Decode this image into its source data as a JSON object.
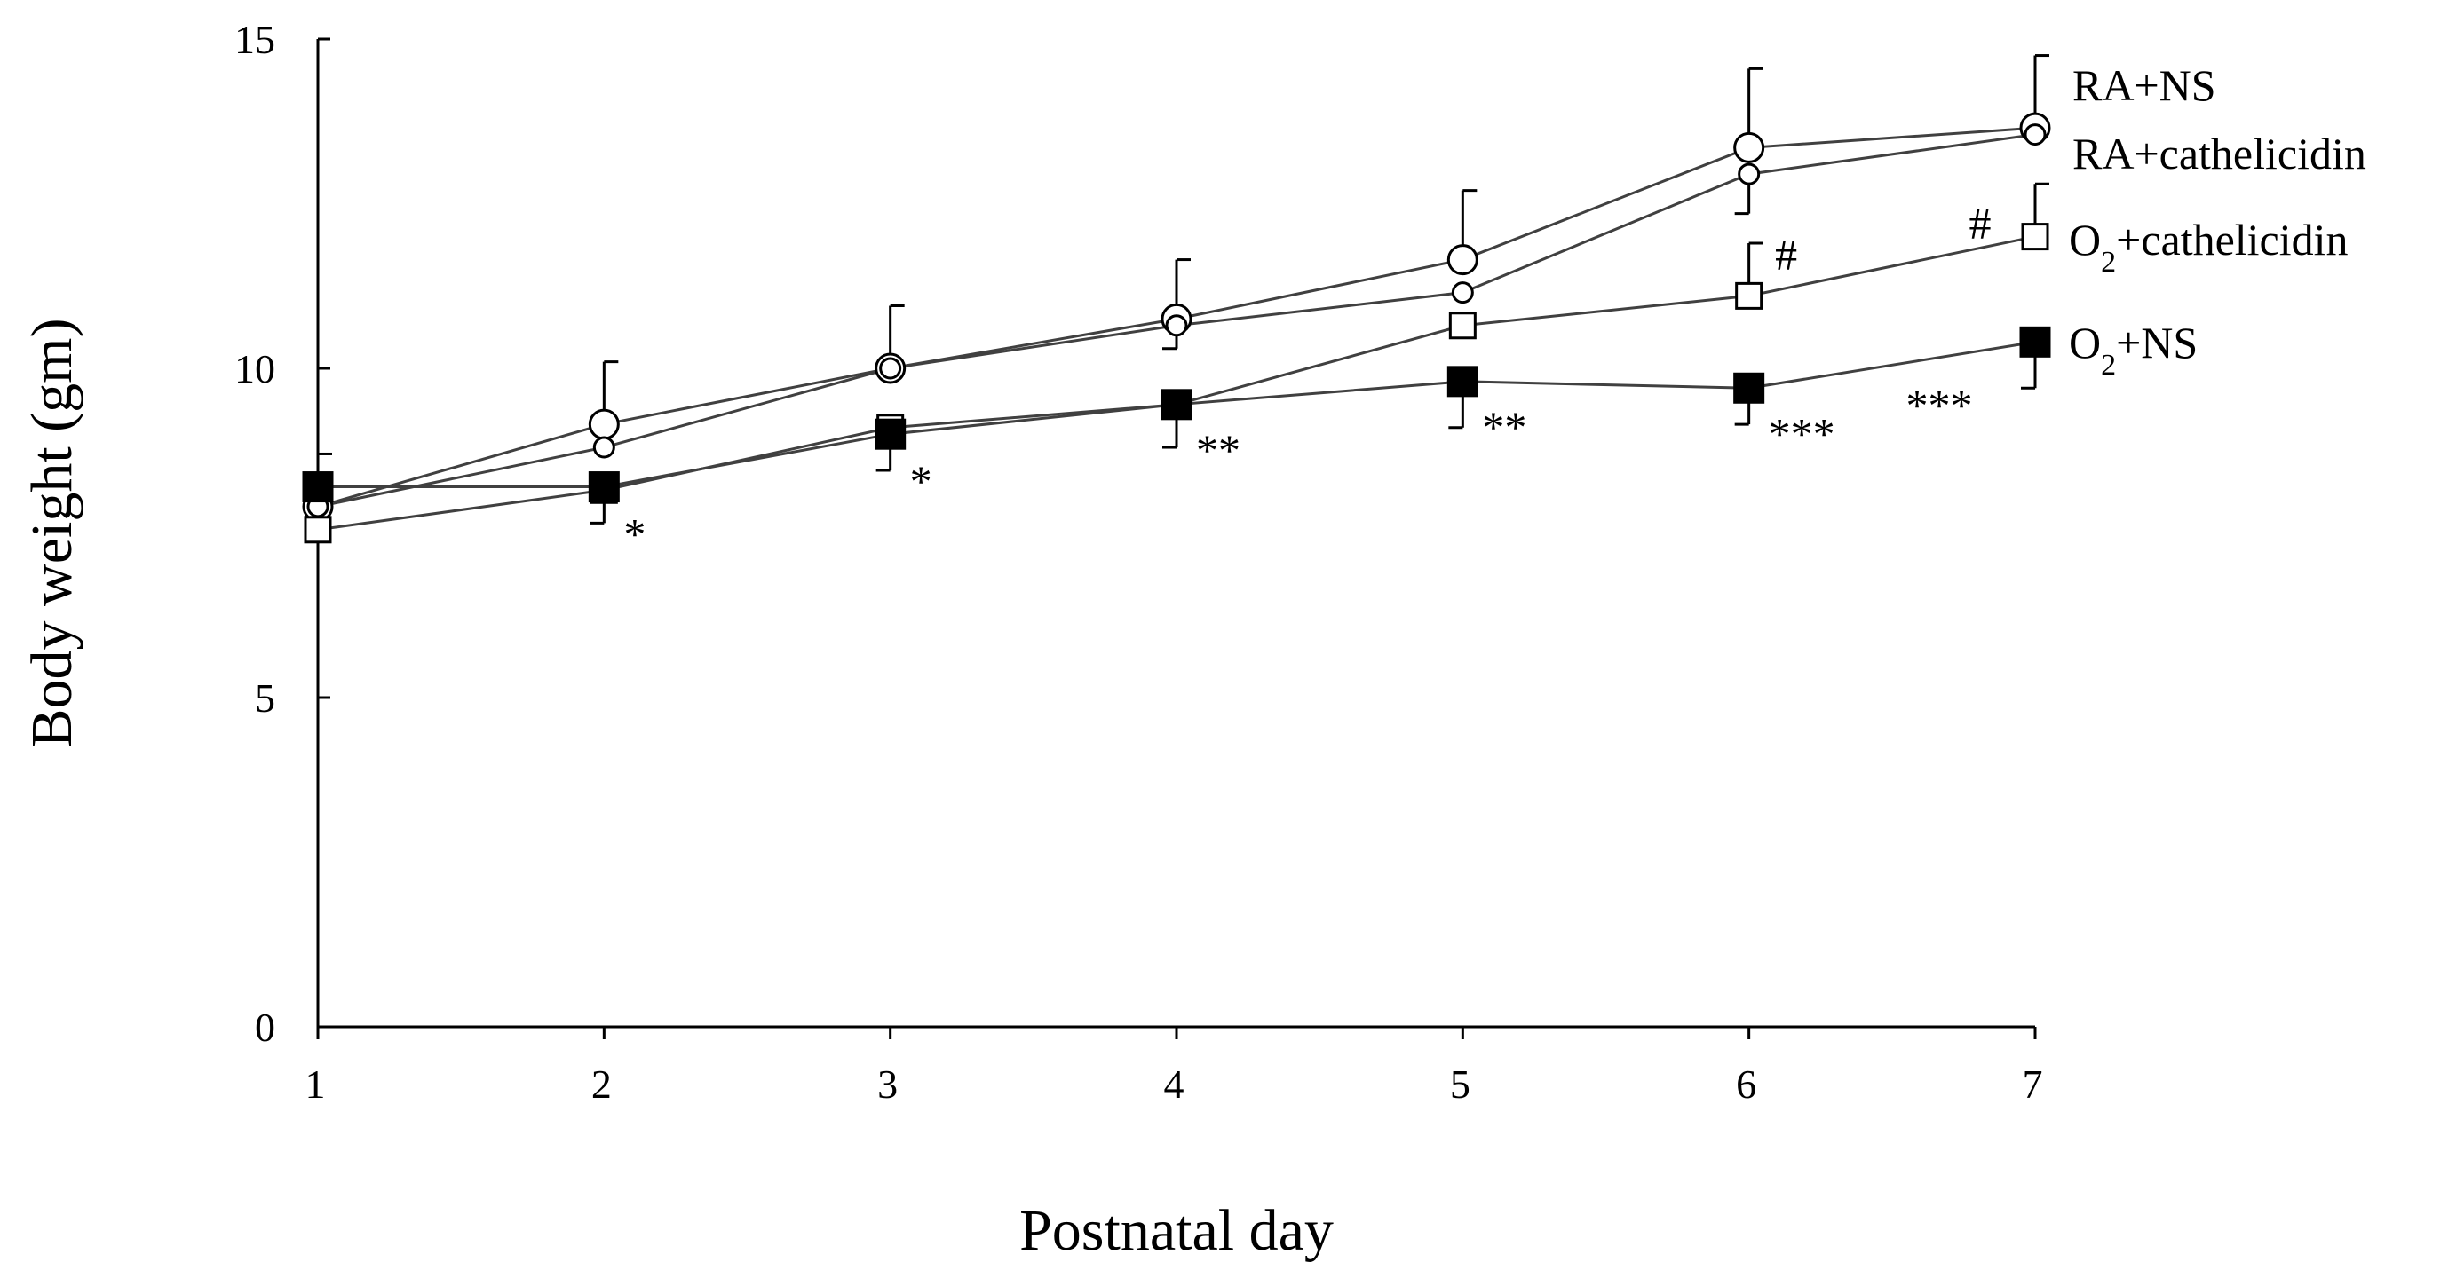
{
  "chart_data": {
    "type": "line",
    "title": "",
    "xlabel": "Postnatal day",
    "ylabel": "Body weight (gm)",
    "x": [
      1,
      2,
      3,
      4,
      5,
      6,
      7
    ],
    "xlim": [
      1,
      7
    ],
    "ylim": [
      0,
      15
    ],
    "yticks": [
      0,
      5,
      10,
      15
    ],
    "xticks": [
      1,
      2,
      3,
      4,
      5,
      6,
      7
    ],
    "grid": false,
    "legend_position": "right",
    "series": [
      {
        "key": "ra-ns",
        "name": "RA+NS",
        "marker": "circle",
        "marker_fill": "#ffffff",
        "marker_size": "large",
        "values": [
          7.9,
          9.15,
          10.0,
          10.75,
          11.65,
          13.35,
          13.65
        ],
        "err_up": [
          0,
          0.95,
          0.95,
          0.9,
          1.05,
          1.2,
          1.1
        ],
        "err_down": [
          0,
          0,
          0,
          0,
          0,
          0,
          0
        ]
      },
      {
        "key": "ra-cath",
        "name": "RA+cathelicidin",
        "marker": "circle",
        "marker_fill": "#ffffff",
        "marker_size": "small",
        "values": [
          7.9,
          8.8,
          10.0,
          10.65,
          11.15,
          12.95,
          13.55
        ],
        "err_up": [
          0,
          0,
          0,
          0,
          0,
          0,
          0
        ],
        "err_down": [
          0,
          0,
          0,
          0.35,
          0,
          0.6,
          0
        ]
      },
      {
        "key": "o2-cath",
        "name": "O2+cathelicidin",
        "legend_base": "O",
        "legend_sub": "2",
        "legend_rest": "+cathelicidin",
        "marker": "square",
        "marker_fill": "#ffffff",
        "marker_size": "medium",
        "values": [
          7.55,
          8.15,
          9.1,
          9.45,
          10.65,
          11.1,
          12.0
        ],
        "err_up": [
          0,
          0,
          0,
          0,
          0,
          0.8,
          0.8
        ],
        "err_down": [
          0,
          0,
          0,
          0,
          0,
          0,
          0
        ]
      },
      {
        "key": "o2-ns",
        "name": "O2+NS",
        "legend_base": "O",
        "legend_sub": "2",
        "legend_rest": "+NS",
        "marker": "square",
        "marker_fill": "#000000",
        "marker_size": "large",
        "values": [
          8.2,
          8.2,
          9.0,
          9.45,
          9.8,
          9.7,
          10.4
        ],
        "err_up": [
          0.5,
          0,
          0,
          0,
          0,
          0,
          0
        ],
        "err_down": [
          0,
          0.55,
          0.55,
          0.65,
          0.7,
          0.55,
          0.7
        ]
      }
    ],
    "annotations": [
      {
        "text": "*",
        "x": 2,
        "series": "o2-ns"
      },
      {
        "text": "*",
        "x": 3,
        "series": "o2-ns"
      },
      {
        "text": "**",
        "x": 4,
        "series": "o2-ns"
      },
      {
        "text": "**",
        "x": 5,
        "series": "o2-ns"
      },
      {
        "text": "***",
        "x": 6,
        "series": "o2-ns"
      },
      {
        "text": "***",
        "x": 7,
        "series": "o2-ns"
      },
      {
        "text": "#",
        "x": 6,
        "series": "o2-cath"
      },
      {
        "text": "#",
        "x": 7,
        "series": "o2-cath"
      }
    ]
  }
}
